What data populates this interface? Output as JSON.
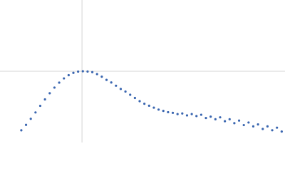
{
  "chart_data": {
    "type": "scatter",
    "color": "#3a66b0",
    "xlim": [
      0,
      6.02
    ],
    "ylim": [
      0,
      2.208
    ],
    "reference_x": 1.732,
    "reference_y": 1.104,
    "x": [
      0.45,
      0.55,
      0.65,
      0.75,
      0.85,
      0.95,
      1.05,
      1.15,
      1.25,
      1.35,
      1.45,
      1.55,
      1.65,
      1.75,
      1.85,
      1.95,
      2.05,
      2.15,
      2.25,
      2.35,
      2.45,
      2.55,
      2.65,
      2.75,
      2.85,
      2.95,
      3.05,
      3.15,
      3.25,
      3.35,
      3.45,
      3.55,
      3.65,
      3.75,
      3.85,
      3.95,
      4.05,
      4.15,
      4.25,
      4.35,
      4.45,
      4.55,
      4.65,
      4.75,
      4.85,
      4.95,
      5.05,
      5.15,
      5.25,
      5.35,
      5.45,
      5.55,
      5.65,
      5.75,
      5.85,
      5.95
    ],
    "values": [
      0.189,
      0.273,
      0.367,
      0.466,
      0.568,
      0.668,
      0.763,
      0.851,
      0.928,
      0.993,
      1.043,
      1.079,
      1.099,
      1.104,
      1.1,
      1.09,
      1.06,
      1.02,
      0.97,
      0.93,
      0.88,
      0.83,
      0.79,
      0.74,
      0.69,
      0.64,
      0.6,
      0.57,
      0.54,
      0.51,
      0.49,
      0.47,
      0.46,
      0.44,
      0.45,
      0.42,
      0.44,
      0.41,
      0.43,
      0.38,
      0.4,
      0.36,
      0.39,
      0.33,
      0.36,
      0.3,
      0.34,
      0.27,
      0.31,
      0.25,
      0.28,
      0.21,
      0.25,
      0.19,
      0.23,
      0.17
    ]
  }
}
